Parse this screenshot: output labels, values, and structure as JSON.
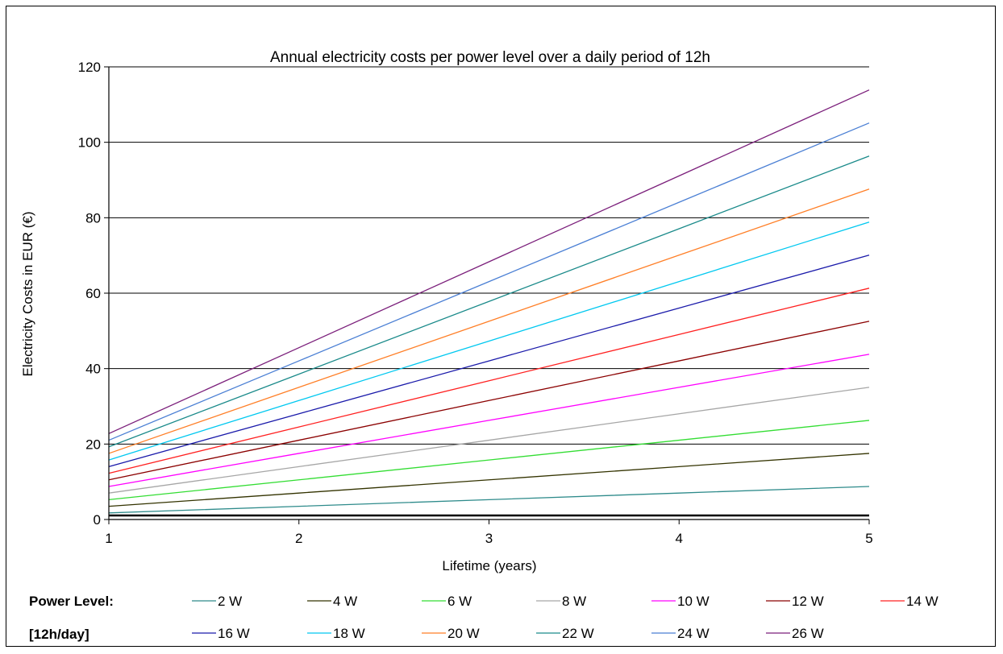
{
  "chart_data": {
    "type": "line",
    "title": "Annual electricity costs per power level over a daily period of 12h",
    "xlabel": "Lifetime (years)",
    "ylabel": "Electricity Costs in EUR (€)",
    "x": [
      1,
      2,
      3,
      4,
      5
    ],
    "xlim": [
      1,
      5
    ],
    "ylim": [
      0,
      120
    ],
    "xticks": [
      "1",
      "2",
      "3",
      "4",
      "5"
    ],
    "yticks": [
      "0",
      "20",
      "40",
      "60",
      "80",
      "100",
      "120"
    ],
    "grid": "horizontal",
    "legend_title_line1": "Power Level:",
    "legend_title_line2": "[12h/day]",
    "legend_position": "bottom",
    "series": [
      {
        "name": "2 W",
        "color": "#2e8b8b",
        "values": [
          1.75,
          3.5,
          5.26,
          7.01,
          8.76
        ]
      },
      {
        "name": "4 W",
        "color": "#333300",
        "values": [
          3.5,
          7.01,
          10.51,
          14.02,
          17.52
        ]
      },
      {
        "name": "6 W",
        "color": "#33dd33",
        "values": [
          5.26,
          10.51,
          15.77,
          21.02,
          26.28
        ]
      },
      {
        "name": "8 W",
        "color": "#a6a6a6",
        "values": [
          7.01,
          14.02,
          21.02,
          28.03,
          35.04
        ]
      },
      {
        "name": "10 W",
        "color": "#ff00ff",
        "values": [
          8.76,
          17.52,
          26.28,
          35.04,
          43.8
        ]
      },
      {
        "name": "12 W",
        "color": "#8b0000",
        "values": [
          10.51,
          21.02,
          31.54,
          42.05,
          52.56
        ]
      },
      {
        "name": "14 W",
        "color": "#ff2020",
        "values": [
          12.26,
          24.53,
          36.79,
          49.06,
          61.32
        ]
      },
      {
        "name": "16 W",
        "color": "#1a1aaa",
        "values": [
          14.02,
          28.03,
          42.05,
          56.06,
          70.08
        ]
      },
      {
        "name": "18 W",
        "color": "#00c8f0",
        "values": [
          15.77,
          31.54,
          47.3,
          63.07,
          78.84
        ]
      },
      {
        "name": "20 W",
        "color": "#ff7f27",
        "values": [
          17.52,
          35.04,
          52.56,
          70.08,
          87.6
        ]
      },
      {
        "name": "22 W",
        "color": "#1a8a8a",
        "values": [
          19.27,
          38.54,
          57.82,
          77.09,
          96.36
        ]
      },
      {
        "name": "24 W",
        "color": "#4a7fd4",
        "values": [
          21.02,
          42.05,
          63.07,
          84.1,
          105.12
        ]
      },
      {
        "name": "26 W",
        "color": "#7b1f7b",
        "values": [
          22.78,
          45.55,
          68.33,
          91.1,
          113.88
        ]
      }
    ]
  }
}
